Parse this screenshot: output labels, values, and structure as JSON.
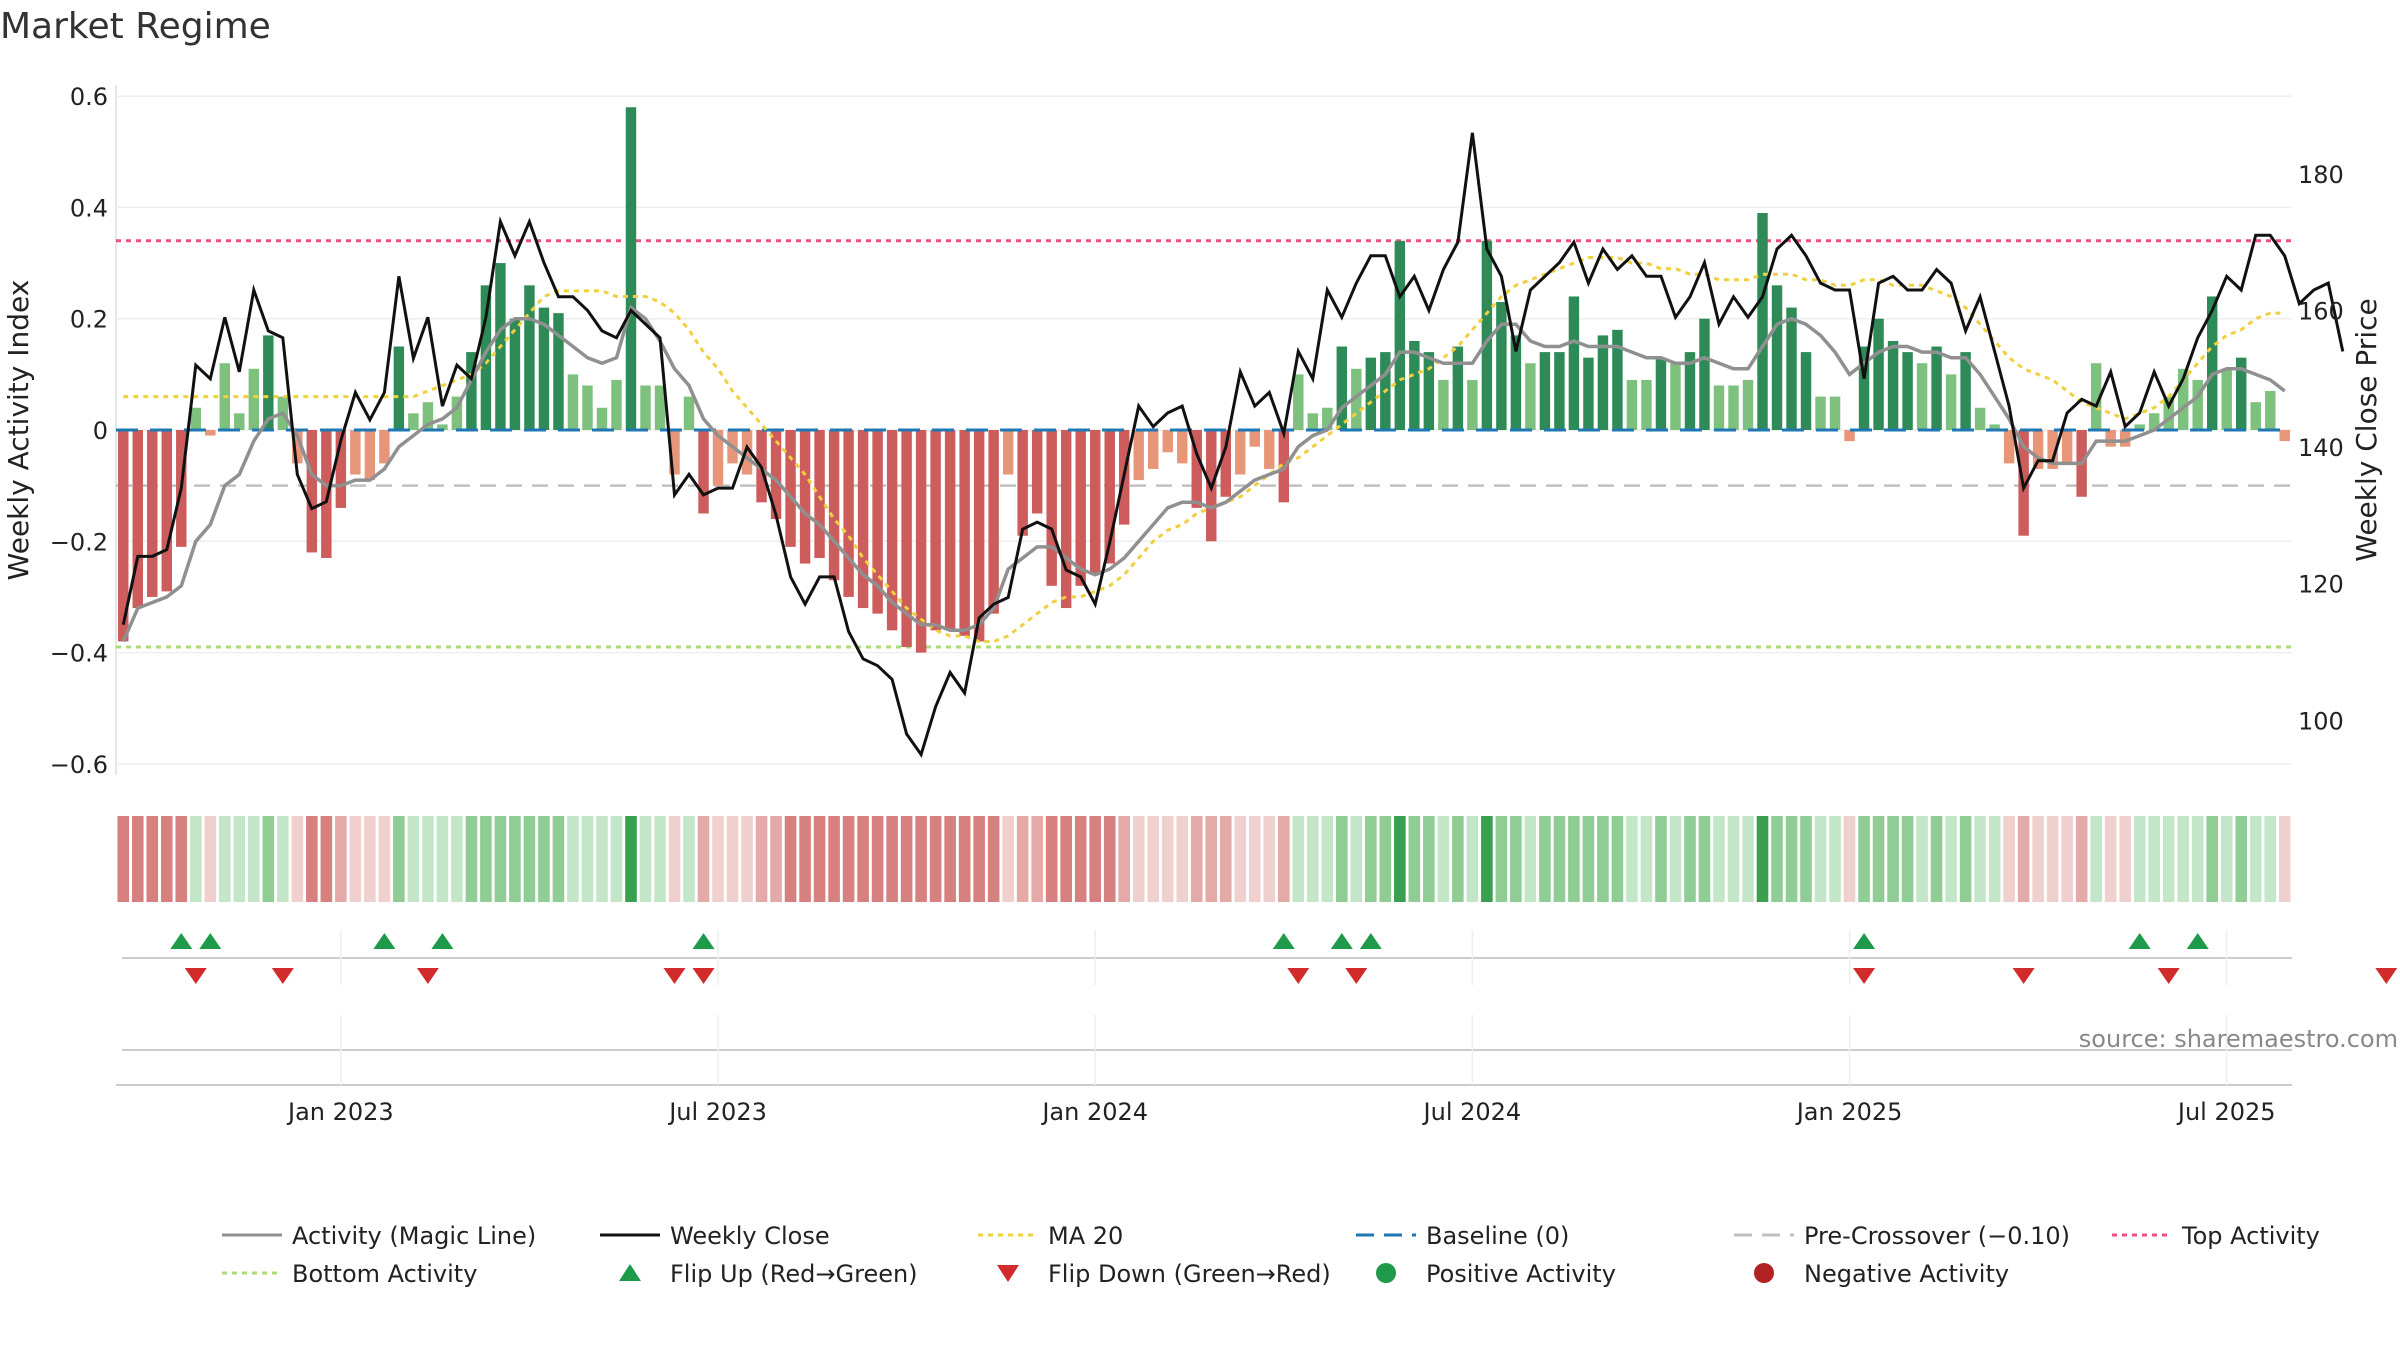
{
  "title": "Market Regime",
  "source": "source: sharemaestro.com",
  "colors": {
    "strong_green": "#2e8b57",
    "light_green": "#7ec07e",
    "strong_red": "#cd5c5c",
    "light_red": "#e8967a",
    "magic_line": "#909090",
    "close": "#111111",
    "ma20": "#f0d040",
    "baseline": "#1f77b4",
    "pre_crossover": "#c0c0c0",
    "top": "#e75480",
    "bottom": "#a8dc78",
    "flip_up": "#1e9a4a",
    "flip_down": "#d22b2b"
  },
  "chart_data": {
    "type": "bar",
    "title": "Market Regime",
    "ylabel": "Weekly Activity Index",
    "y2label": "Weekly Close Price",
    "ylim": [
      -0.62,
      0.62
    ],
    "y2lim": [
      92,
      193
    ],
    "yticks": [
      "0.6",
      "0.4",
      "0.2",
      "0",
      "−0.2",
      "−0.4",
      "−0.6"
    ],
    "y2ticks": [
      "180",
      "160",
      "140",
      "120",
      "100"
    ],
    "xticks": [
      "Jan 2023",
      "Jul 2023",
      "Jan 2024",
      "Jul 2024",
      "Jan 2025",
      "Jul 2025"
    ],
    "xtick_weeks": [
      15,
      41,
      67,
      93,
      119,
      145
    ],
    "thresholds": {
      "top": 0.34,
      "bottom": -0.39,
      "pre_crossover": -0.1,
      "baseline": 0
    },
    "grid": true,
    "legend_position": "bottom",
    "activity": [
      -0.38,
      -0.32,
      -0.3,
      -0.29,
      -0.21,
      0.04,
      -0.01,
      0.12,
      0.03,
      0.11,
      0.17,
      0.06,
      -0.06,
      -0.22,
      -0.23,
      -0.14,
      -0.08,
      -0.09,
      -0.06,
      0.15,
      0.03,
      0.05,
      0.01,
      0.06,
      0.14,
      0.26,
      0.3,
      0.2,
      0.26,
      0.22,
      0.21,
      0.1,
      0.08,
      0.04,
      0.09,
      0.58,
      0.08,
      0.08,
      -0.08,
      0.06,
      -0.15,
      -0.1,
      -0.06,
      -0.08,
      -0.13,
      -0.16,
      -0.21,
      -0.24,
      -0.23,
      -0.27,
      -0.3,
      -0.32,
      -0.33,
      -0.36,
      -0.39,
      -0.4,
      -0.36,
      -0.36,
      -0.37,
      -0.38,
      -0.33,
      -0.08,
      -0.19,
      -0.15,
      -0.28,
      -0.32,
      -0.28,
      -0.26,
      -0.24,
      -0.17,
      -0.09,
      -0.07,
      -0.04,
      -0.06,
      -0.14,
      -0.2,
      -0.12,
      -0.08,
      -0.03,
      -0.07,
      -0.13,
      0.1,
      0.03,
      0.04,
      0.15,
      0.11,
      0.13,
      0.14,
      0.34,
      0.16,
      0.14,
      0.09,
      0.15,
      0.09,
      0.34,
      0.23,
      0.17,
      0.12,
      0.14,
      0.14,
      0.24,
      0.13,
      0.17,
      0.18,
      0.09,
      0.09,
      0.13,
      0.12,
      0.14,
      0.2,
      0.08,
      0.08,
      0.09,
      0.39,
      0.26,
      0.22,
      0.14,
      0.06,
      0.06,
      -0.02,
      0.15,
      0.2,
      0.16,
      0.14,
      0.12,
      0.15,
      0.1,
      0.14,
      0.04,
      0.01,
      -0.06,
      -0.19,
      -0.07,
      -0.07,
      -0.06,
      -0.12,
      0.12,
      -0.03,
      -0.03,
      0.01,
      0.03,
      0.06,
      0.11,
      0.09,
      0.24,
      0.11,
      0.13,
      0.05,
      0.07,
      -0.02
    ],
    "magic_line": [
      -0.38,
      -0.32,
      -0.31,
      -0.3,
      -0.28,
      -0.2,
      -0.17,
      -0.1,
      -0.08,
      -0.02,
      0.02,
      0.03,
      -0.01,
      -0.08,
      -0.1,
      -0.1,
      -0.09,
      -0.09,
      -0.07,
      -0.03,
      -0.01,
      0.01,
      0.02,
      0.04,
      0.09,
      0.14,
      0.18,
      0.2,
      0.2,
      0.19,
      0.17,
      0.15,
      0.13,
      0.12,
      0.13,
      0.22,
      0.2,
      0.16,
      0.11,
      0.08,
      0.02,
      -0.01,
      -0.03,
      -0.05,
      -0.07,
      -0.09,
      -0.12,
      -0.15,
      -0.17,
      -0.2,
      -0.23,
      -0.26,
      -0.28,
      -0.31,
      -0.33,
      -0.35,
      -0.35,
      -0.36,
      -0.36,
      -0.35,
      -0.32,
      -0.25,
      -0.23,
      -0.21,
      -0.21,
      -0.23,
      -0.25,
      -0.26,
      -0.25,
      -0.23,
      -0.2,
      -0.17,
      -0.14,
      -0.13,
      -0.13,
      -0.14,
      -0.13,
      -0.11,
      -0.09,
      -0.08,
      -0.07,
      -0.03,
      -0.01,
      0.0,
      0.04,
      0.06,
      0.08,
      0.1,
      0.14,
      0.14,
      0.13,
      0.12,
      0.12,
      0.12,
      0.16,
      0.19,
      0.19,
      0.16,
      0.15,
      0.15,
      0.16,
      0.15,
      0.15,
      0.15,
      0.14,
      0.13,
      0.13,
      0.12,
      0.12,
      0.13,
      0.12,
      0.11,
      0.11,
      0.15,
      0.19,
      0.2,
      0.19,
      0.17,
      0.14,
      0.1,
      0.12,
      0.14,
      0.15,
      0.15,
      0.14,
      0.14,
      0.13,
      0.13,
      0.1,
      0.06,
      0.02,
      -0.03,
      -0.05,
      -0.06,
      -0.06,
      -0.06,
      -0.02,
      -0.02,
      -0.02,
      -0.01,
      0.0,
      0.02,
      0.04,
      0.06,
      0.1,
      0.11,
      0.11,
      0.1,
      0.09,
      0.07
    ],
    "close": [
      114,
      124,
      124,
      125,
      134,
      152,
      150,
      159,
      151,
      163,
      157,
      156,
      136,
      131,
      132,
      141,
      148,
      144,
      148,
      165,
      153,
      159,
      146,
      152,
      150,
      159,
      173,
      168,
      173,
      167,
      162,
      162,
      160,
      157,
      156,
      160,
      158,
      156,
      133,
      136,
      133,
      134,
      134,
      140,
      137,
      130,
      121,
      117,
      121,
      121,
      113,
      109,
      108,
      106,
      98,
      95,
      102,
      107,
      104,
      115,
      117,
      118,
      128,
      129,
      128,
      122,
      121,
      117,
      126,
      136,
      146,
      143,
      145,
      146,
      139,
      134,
      140,
      151,
      146,
      148,
      142,
      154,
      150,
      163,
      159,
      164,
      168,
      168,
      162,
      165,
      160,
      166,
      170,
      186,
      169,
      165,
      154,
      163,
      165,
      167,
      170,
      164,
      169,
      166,
      168,
      165,
      165,
      159,
      162,
      167,
      158,
      162,
      159,
      162,
      169,
      171,
      168,
      164,
      163,
      163,
      150,
      164,
      165,
      163,
      163,
      166,
      164,
      157,
      162,
      154,
      146,
      134,
      138,
      138,
      145,
      147,
      146,
      151,
      143,
      145,
      151,
      146,
      150,
      156,
      160,
      165,
      163,
      171,
      171,
      168,
      161,
      163,
      164,
      154
    ],
    "ma20": [
      0.06,
      0.06,
      0.06,
      0.06,
      0.06,
      0.06,
      0.06,
      0.06,
      0.06,
      0.06,
      0.06,
      0.06,
      0.06,
      0.06,
      0.06,
      0.06,
      0.06,
      0.06,
      0.06,
      0.06,
      0.06,
      0.07,
      0.08,
      0.09,
      0.1,
      0.12,
      0.15,
      0.18,
      0.21,
      0.24,
      0.25,
      0.25,
      0.25,
      0.25,
      0.24,
      0.24,
      0.24,
      0.23,
      0.21,
      0.18,
      0.14,
      0.11,
      0.07,
      0.04,
      0.01,
      -0.02,
      -0.05,
      -0.08,
      -0.12,
      -0.16,
      -0.19,
      -0.23,
      -0.26,
      -0.29,
      -0.32,
      -0.34,
      -0.36,
      -0.37,
      -0.37,
      -0.38,
      -0.38,
      -0.37,
      -0.35,
      -0.33,
      -0.31,
      -0.3,
      -0.3,
      -0.29,
      -0.28,
      -0.26,
      -0.23,
      -0.2,
      -0.18,
      -0.17,
      -0.15,
      -0.14,
      -0.13,
      -0.12,
      -0.1,
      -0.08,
      -0.06,
      -0.05,
      -0.03,
      -0.01,
      0.01,
      0.03,
      0.05,
      0.07,
      0.09,
      0.1,
      0.11,
      0.13,
      0.15,
      0.18,
      0.21,
      0.24,
      0.26,
      0.27,
      0.28,
      0.29,
      0.3,
      0.31,
      0.31,
      0.31,
      0.3,
      0.3,
      0.29,
      0.29,
      0.28,
      0.28,
      0.27,
      0.27,
      0.27,
      0.28,
      0.28,
      0.28,
      0.27,
      0.27,
      0.26,
      0.26,
      0.27,
      0.27,
      0.26,
      0.26,
      0.26,
      0.25,
      0.24,
      0.22,
      0.19,
      0.16,
      0.13,
      0.11,
      0.1,
      0.09,
      0.07,
      0.05,
      0.04,
      0.03,
      0.02,
      0.03,
      0.04,
      0.06,
      0.09,
      0.12,
      0.15,
      0.17,
      0.18,
      0.2,
      0.21,
      0.21
    ],
    "flip_up_weeks": [
      4,
      6,
      18,
      22,
      40,
      80,
      84,
      86,
      120,
      139,
      143
    ],
    "flip_down_weeks": [
      5,
      11,
      21,
      38,
      40,
      81,
      85,
      120,
      131,
      141,
      156
    ],
    "series": [
      {
        "name": "Activity (Magic Line)",
        "style": "solid-gray"
      },
      {
        "name": "Weekly Close",
        "style": "solid-black"
      },
      {
        "name": "MA 20",
        "style": "dotted-yellow"
      },
      {
        "name": "Baseline (0)",
        "style": "dashed-blue"
      },
      {
        "name": "Pre-Crossover (−0.10)",
        "style": "dashed-gray"
      },
      {
        "name": "Top Activity",
        "style": "dotted-pink"
      },
      {
        "name": "Bottom Activity",
        "style": "dotted-green"
      },
      {
        "name": "Flip Up (Red→Green)",
        "style": "triangle-up"
      },
      {
        "name": "Flip Down (Green→Red)",
        "style": "triangle-down"
      },
      {
        "name": "Positive Activity",
        "style": "dot-green"
      },
      {
        "name": "Negative Activity",
        "style": "dot-red"
      }
    ]
  }
}
